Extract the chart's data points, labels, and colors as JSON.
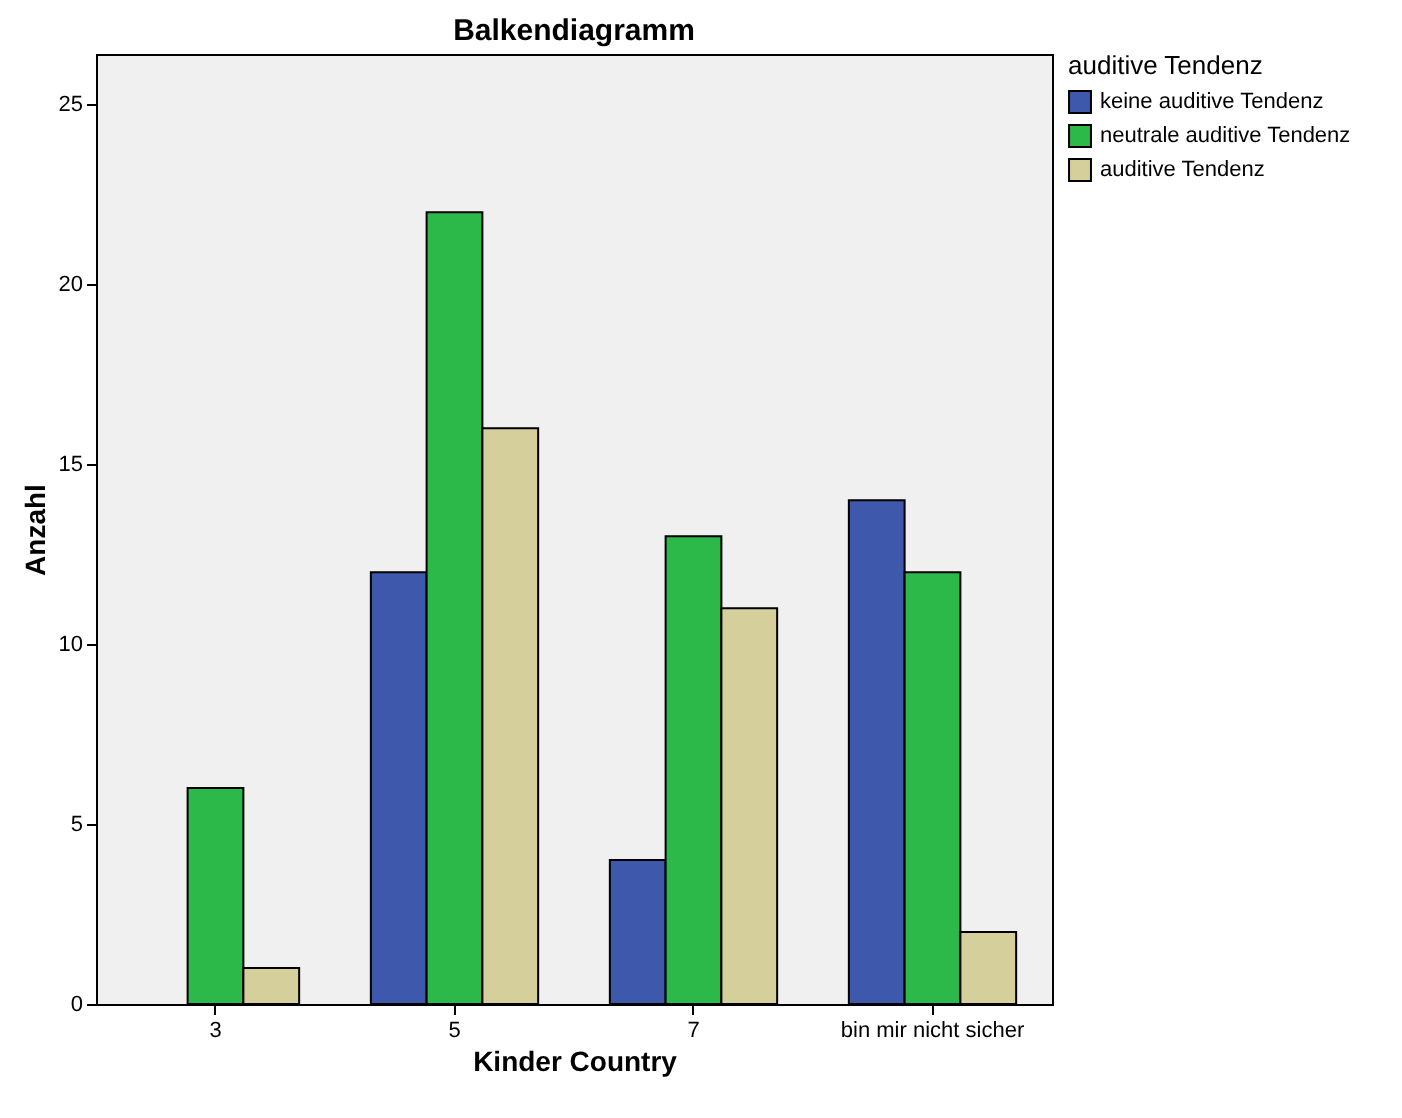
{
  "chart_data": {
    "type": "bar",
    "title": "Balkendiagramm",
    "xlabel": "Kinder Country",
    "ylabel": "Anzahl",
    "legend_title": "auditive Tendenz",
    "categories": [
      "3",
      "5",
      "7",
      "bin mir nicht sicher"
    ],
    "series": [
      {
        "name": "keine auditive Tendenz",
        "color": "#3e58ac",
        "values": [
          null,
          12,
          4,
          14
        ]
      },
      {
        "name": "neutrale auditive Tendenz",
        "color": "#2db84a",
        "values": [
          6,
          22,
          13,
          12
        ]
      },
      {
        "name": "auditive Tendenz",
        "color": "#d5cf9c",
        "values": [
          1,
          16,
          11,
          2
        ]
      }
    ],
    "ylim": [
      0,
      26.4
    ],
    "yticks": [
      0,
      5,
      10,
      15,
      20,
      25
    ],
    "grid": false,
    "legend": "right"
  }
}
